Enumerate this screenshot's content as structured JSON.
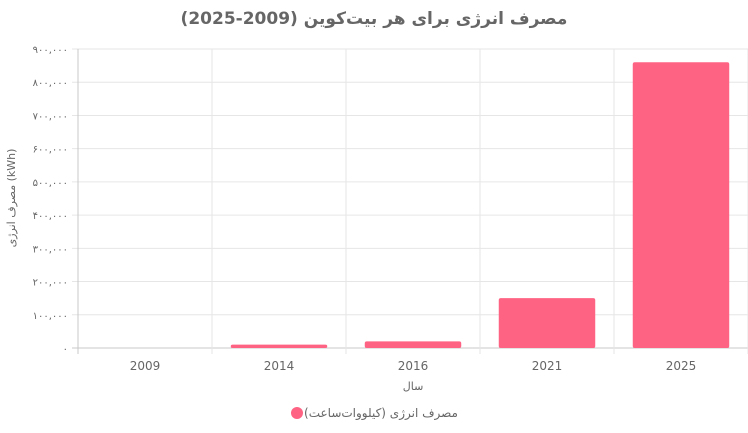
{
  "chart_data": {
    "type": "bar",
    "title": "مصرف انرژی برای هر بیت‌کوین (2009-2025)",
    "xlabel": "سال",
    "ylabel": "مصرف انرژی (kWh)",
    "categories": [
      "2009",
      "2014",
      "2016",
      "2021",
      "2025"
    ],
    "series": [
      {
        "name": "مصرف انرژی (کیلووات‌ساعت)",
        "values": [
          0,
          10000,
          20000,
          150000,
          860000
        ],
        "color": "#ff6384"
      }
    ],
    "ylim": [
      0,
      900000
    ],
    "yticks": [
      "۰",
      "۱۰۰,۰۰۰",
      "۲۰۰,۰۰۰",
      "۳۰۰,۰۰۰",
      "۴۰۰,۰۰۰",
      "۵۰۰,۰۰۰",
      "۶۰۰,۰۰۰",
      "۷۰۰,۰۰۰",
      "۸۰۰,۰۰۰",
      "۹۰۰,۰۰۰"
    ],
    "ytick_values": [
      0,
      100000,
      200000,
      300000,
      400000,
      500000,
      600000,
      700000,
      800000,
      900000
    ],
    "grid": true,
    "legend": "bottom"
  }
}
